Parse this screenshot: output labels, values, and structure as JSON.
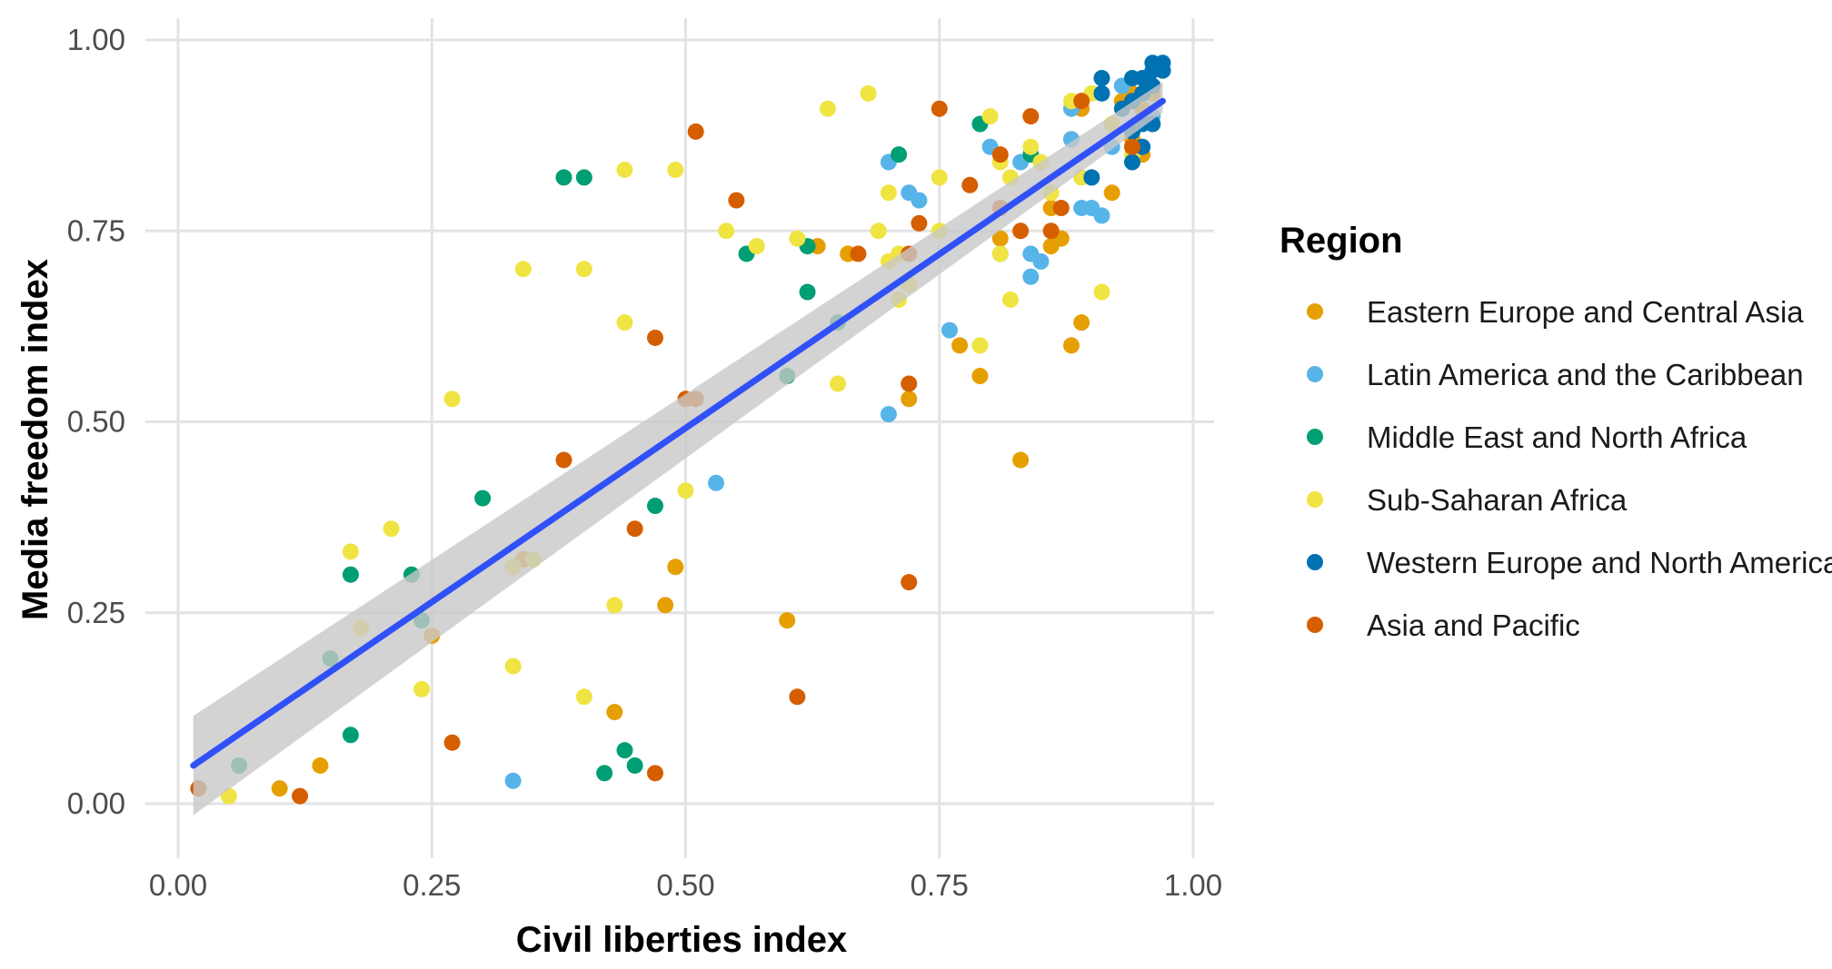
{
  "chart_data": {
    "type": "scatter",
    "xlabel": "Civil liberties index",
    "ylabel": "Media freedom index",
    "xlim": [
      0,
      1
    ],
    "ylim": [
      0,
      1
    ],
    "x_ticks": [
      "0.00",
      "0.25",
      "0.50",
      "0.75",
      "1.00"
    ],
    "y_ticks": [
      "0.00",
      "0.25",
      "0.50",
      "0.75",
      "1.00"
    ],
    "grid": true,
    "legend": {
      "title": "Region",
      "placement": "right",
      "entries": [
        {
          "key": "eeca",
          "label": "Eastern Europe and Central Asia",
          "color": "#E69F00"
        },
        {
          "key": "lac",
          "label": "Latin America and the Caribbean",
          "color": "#56B4E9"
        },
        {
          "key": "mena",
          "label": "Middle East and North Africa",
          "color": "#009E73"
        },
        {
          "key": "ssa",
          "label": "Sub-Saharan Africa",
          "color": "#F0E442"
        },
        {
          "key": "wena",
          "label": "Western Europe and North America",
          "color": "#0072B2"
        },
        {
          "key": "ap",
          "label": "Asia and Pacific",
          "color": "#D55E00"
        }
      ]
    },
    "trend_line": {
      "method": "linear",
      "x": [
        0.015,
        0.97
      ],
      "y": [
        0.05,
        0.92
      ],
      "band_lower": [
        -0.015,
        0.905
      ],
      "band_upper": [
        0.115,
        0.945
      ],
      "color": "#3050F8",
      "band_color": "#c8c8c8"
    },
    "series": [
      {
        "key": "eeca",
        "x": [
          0.1,
          0.14,
          0.25,
          0.18,
          0.34,
          0.33,
          0.43,
          0.48,
          0.49,
          0.6,
          0.63,
          0.66,
          0.66,
          0.72,
          0.72,
          0.77,
          0.79,
          0.81,
          0.83,
          0.86,
          0.86,
          0.87,
          0.88,
          0.88,
          0.89,
          0.89,
          0.89,
          0.92,
          0.93,
          0.93,
          0.94,
          0.94,
          0.95,
          0.96,
          0.96,
          0.95
        ],
        "y": [
          0.02,
          0.05,
          0.22,
          0.23,
          0.32,
          0.31,
          0.12,
          0.26,
          0.31,
          0.24,
          0.73,
          0.72,
          0.72,
          0.53,
          0.68,
          0.6,
          0.56,
          0.74,
          0.45,
          0.73,
          0.78,
          0.74,
          0.6,
          0.87,
          0.63,
          0.91,
          0.92,
          0.8,
          0.92,
          0.92,
          0.93,
          0.87,
          0.85,
          0.93,
          0.94,
          0.91
        ]
      },
      {
        "key": "lac",
        "x": [
          0.33,
          0.53,
          0.7,
          0.7,
          0.72,
          0.73,
          0.76,
          0.8,
          0.81,
          0.83,
          0.84,
          0.84,
          0.85,
          0.88,
          0.88,
          0.89,
          0.9,
          0.91,
          0.92,
          0.93,
          0.94,
          0.96
        ],
        "y": [
          0.03,
          0.42,
          0.51,
          0.84,
          0.8,
          0.79,
          0.62,
          0.86,
          0.72,
          0.84,
          0.69,
          0.72,
          0.71,
          0.91,
          0.87,
          0.78,
          0.78,
          0.77,
          0.86,
          0.94,
          0.88,
          0.9
        ]
      },
      {
        "key": "mena",
        "x": [
          0.06,
          0.15,
          0.17,
          0.17,
          0.23,
          0.24,
          0.3,
          0.38,
          0.4,
          0.42,
          0.44,
          0.45,
          0.47,
          0.56,
          0.6,
          0.62,
          0.62,
          0.65,
          0.71,
          0.79,
          0.84
        ],
        "y": [
          0.05,
          0.19,
          0.09,
          0.3,
          0.3,
          0.24,
          0.4,
          0.82,
          0.82,
          0.04,
          0.07,
          0.05,
          0.39,
          0.72,
          0.56,
          0.73,
          0.67,
          0.63,
          0.85,
          0.89,
          0.85
        ]
      },
      {
        "key": "ssa",
        "x": [
          0.05,
          0.17,
          0.18,
          0.21,
          0.24,
          0.27,
          0.33,
          0.33,
          0.34,
          0.35,
          0.4,
          0.4,
          0.43,
          0.44,
          0.44,
          0.49,
          0.5,
          0.54,
          0.57,
          0.61,
          0.64,
          0.65,
          0.68,
          0.69,
          0.7,
          0.7,
          0.71,
          0.71,
          0.72,
          0.75,
          0.75,
          0.79,
          0.8,
          0.81,
          0.81,
          0.82,
          0.82,
          0.84,
          0.85,
          0.86,
          0.88,
          0.89,
          0.9,
          0.91,
          0.92,
          0.94
        ],
        "y": [
          0.01,
          0.33,
          0.23,
          0.36,
          0.15,
          0.53,
          0.18,
          0.31,
          0.7,
          0.32,
          0.7,
          0.14,
          0.26,
          0.63,
          0.83,
          0.83,
          0.41,
          0.75,
          0.73,
          0.74,
          0.91,
          0.55,
          0.93,
          0.75,
          0.8,
          0.71,
          0.66,
          0.72,
          0.68,
          0.82,
          0.75,
          0.6,
          0.9,
          0.72,
          0.84,
          0.66,
          0.82,
          0.86,
          0.84,
          0.8,
          0.92,
          0.82,
          0.93,
          0.67,
          0.89,
          0.85
        ]
      },
      {
        "key": "wena",
        "x": [
          0.9,
          0.91,
          0.91,
          0.93,
          0.94,
          0.94,
          0.94,
          0.95,
          0.95,
          0.95,
          0.96,
          0.96,
          0.96,
          0.96,
          0.97,
          0.97,
          0.97,
          0.95,
          0.94
        ],
        "y": [
          0.82,
          0.93,
          0.95,
          0.91,
          0.95,
          0.84,
          0.88,
          0.95,
          0.86,
          0.89,
          0.94,
          0.97,
          0.89,
          0.96,
          0.97,
          0.96,
          0.96,
          0.93,
          0.92
        ]
      },
      {
        "key": "ap",
        "x": [
          0.02,
          0.12,
          0.27,
          0.38,
          0.45,
          0.47,
          0.47,
          0.5,
          0.51,
          0.51,
          0.55,
          0.61,
          0.67,
          0.72,
          0.72,
          0.72,
          0.73,
          0.75,
          0.78,
          0.81,
          0.81,
          0.83,
          0.84,
          0.86,
          0.87,
          0.89,
          0.94
        ],
        "y": [
          0.02,
          0.01,
          0.08,
          0.45,
          0.36,
          0.04,
          0.61,
          0.53,
          0.53,
          0.88,
          0.79,
          0.14,
          0.72,
          0.55,
          0.29,
          0.72,
          0.76,
          0.91,
          0.81,
          0.85,
          0.78,
          0.75,
          0.9,
          0.75,
          0.78,
          0.92,
          0.86
        ]
      }
    ]
  }
}
